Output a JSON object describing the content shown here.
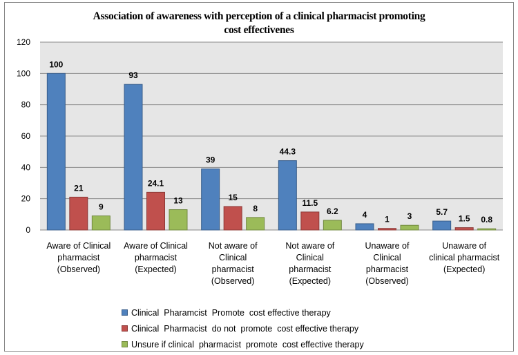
{
  "chart_data": {
    "type": "bar",
    "title": "Association of awareness with perception of a clinical pharmacist promoting cost effectivenes",
    "title_lines": [
      "Association of awareness with perception of a clinical pharmacist promoting",
      "cost effectivenes"
    ],
    "xlabel": "",
    "ylabel": "",
    "ylim": [
      0,
      120
    ],
    "yticks": [
      0,
      20,
      40,
      60,
      80,
      100,
      120
    ],
    "grid": true,
    "legend_position": "bottom",
    "categories": [
      "Aware of Clinical pharmacist (Observed)",
      "Aware of Clinical pharmacist (Expected)",
      "Not aware of Clinical pharmacist (Observed)",
      "Not aware of Clinical pharmacist (Expected)",
      "Unaware of Clinical pharmacist (Observed)",
      "Unaware of clinical pharmacist (Expected)"
    ],
    "category_lines": [
      [
        "Aware of Clinical",
        "pharmacist",
        "(Observed)"
      ],
      [
        "Aware of Clinical",
        "pharmacist",
        "(Expected)"
      ],
      [
        "Not aware of",
        "Clinical",
        "pharmacist",
        "(Observed)"
      ],
      [
        "Not aware of",
        "Clinical",
        "pharmacist",
        "(Expected)"
      ],
      [
        "Unaware of",
        "Clinical",
        "pharmacist",
        "(Observed)"
      ],
      [
        "Unaware of",
        "clinical pharmacist",
        "(Expected)"
      ]
    ],
    "series": [
      {
        "name": "Clinical  Pharamcist  Promote  cost effective therapy",
        "color": "#4f81bd",
        "border": "#385d8a",
        "values": [
          100,
          93,
          39,
          44.3,
          4,
          5.7
        ],
        "labels": [
          "100",
          "93",
          "39",
          "44.3",
          "4",
          "5.7"
        ]
      },
      {
        "name": "Clinical  Pharmacist  do not  promote  cost effective therapy",
        "color": "#c0504d",
        "border": "#8c3836",
        "values": [
          21,
          24.1,
          15,
          11.5,
          1,
          1.5
        ],
        "labels": [
          "21",
          "24.1",
          "15",
          "11.5",
          "1",
          "1.5"
        ]
      },
      {
        "name": "Unsure if clinical  pharmacist  promote  cost effective therapy",
        "color": "#9bbb59",
        "border": "#71893f",
        "values": [
          9,
          13,
          8,
          6.2,
          3,
          0.8
        ],
        "labels": [
          "9",
          "13",
          "8",
          "6.2",
          "3",
          "0.8"
        ]
      }
    ]
  }
}
